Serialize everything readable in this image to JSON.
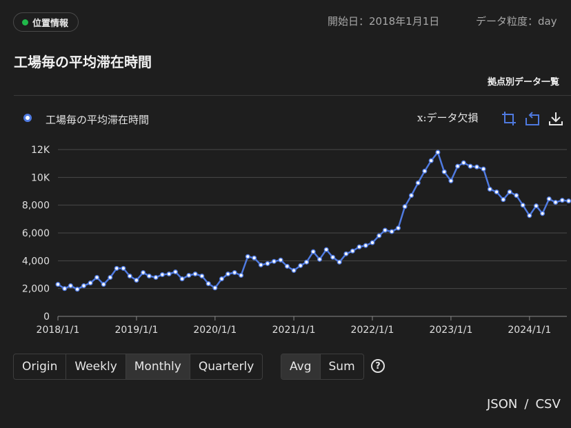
{
  "header": {
    "badge_label": "位置情報",
    "start_date_text": "開始日：2018年1月1日",
    "granularity_text": "データ粒度：day"
  },
  "page_title": "工場毎の平均滞在時間",
  "site_data_link": "拠点別データ一覧",
  "legend": {
    "label": "工場毎の平均滞在時間"
  },
  "missing_note": "x:データ欠損",
  "toolbar_icons": [
    "crop-icon",
    "reset-icon",
    "download-icon"
  ],
  "granularity_buttons": [
    "Origin",
    "Weekly",
    "Monthly",
    "Quarterly"
  ],
  "granularity_selected": "Monthly",
  "aggregate_buttons": [
    "Avg",
    "Sum"
  ],
  "aggregate_selected": "Avg",
  "help_label": "?",
  "export": {
    "json": "JSON",
    "sep": "/",
    "csv": "CSV"
  },
  "colors": {
    "series": "#4f7ae0",
    "point_fill": "#ffffff",
    "badge_dot": "#20b94a"
  },
  "chart_data": {
    "type": "line",
    "x_ticks": [
      "2018/1/1",
      "2019/1/1",
      "2020/1/1",
      "2021/1/1",
      "2022/1/1",
      "2023/1/1",
      "2024/1/1"
    ],
    "y_ticks": [
      "0",
      "2,000",
      "4,000",
      "6,000",
      "8,000",
      "10K",
      "12K"
    ],
    "ylim": [
      0,
      12000
    ],
    "grid": true,
    "series": [
      {
        "name": "工場毎の平均滞在時間",
        "x": [
          "2018-01",
          "2018-02",
          "2018-03",
          "2018-04",
          "2018-05",
          "2018-06",
          "2018-07",
          "2018-08",
          "2018-09",
          "2018-10",
          "2018-11",
          "2018-12",
          "2019-01",
          "2019-02",
          "2019-03",
          "2019-04",
          "2019-05",
          "2019-06",
          "2019-07",
          "2019-08",
          "2019-09",
          "2019-10",
          "2019-11",
          "2019-12",
          "2020-01",
          "2020-02",
          "2020-03",
          "2020-04",
          "2020-05",
          "2020-06",
          "2020-07",
          "2020-08",
          "2020-09",
          "2020-10",
          "2020-11",
          "2020-12",
          "2021-01",
          "2021-02",
          "2021-03",
          "2021-04",
          "2021-05",
          "2021-06",
          "2021-07",
          "2021-08",
          "2021-09",
          "2021-10",
          "2021-11",
          "2021-12",
          "2022-01",
          "2022-02",
          "2022-03",
          "2022-04",
          "2022-05",
          "2022-06",
          "2022-07",
          "2022-08",
          "2022-09",
          "2022-10",
          "2022-11",
          "2022-12",
          "2023-01",
          "2023-02",
          "2023-03",
          "2023-04",
          "2023-05",
          "2023-06",
          "2023-07",
          "2023-08",
          "2023-09",
          "2023-10",
          "2023-11",
          "2023-12",
          "2024-01",
          "2024-02",
          "2024-03",
          "2024-04",
          "2024-05",
          "2024-06",
          "2024-07"
        ],
        "values": [
          2300,
          2000,
          2200,
          1950,
          2200,
          2400,
          2800,
          2300,
          2800,
          3450,
          3450,
          2900,
          2600,
          3150,
          2900,
          2800,
          3000,
          3050,
          3200,
          2700,
          2950,
          3050,
          2900,
          2350,
          2050,
          2700,
          3050,
          3150,
          2950,
          4300,
          4200,
          3700,
          3800,
          3950,
          4050,
          3600,
          3300,
          3650,
          3900,
          4650,
          4100,
          4800,
          4250,
          3900,
          4500,
          4700,
          5000,
          5100,
          5300,
          5800,
          6200,
          6100,
          6350,
          7900,
          8700,
          9600,
          10450,
          11200,
          11800,
          10400,
          9750,
          10800,
          11050,
          10800,
          10750,
          10600,
          9150,
          8950,
          8400,
          8950,
          8700,
          8000,
          7250,
          7950,
          7400,
          8450,
          8200,
          8350,
          8300
        ]
      }
    ]
  }
}
